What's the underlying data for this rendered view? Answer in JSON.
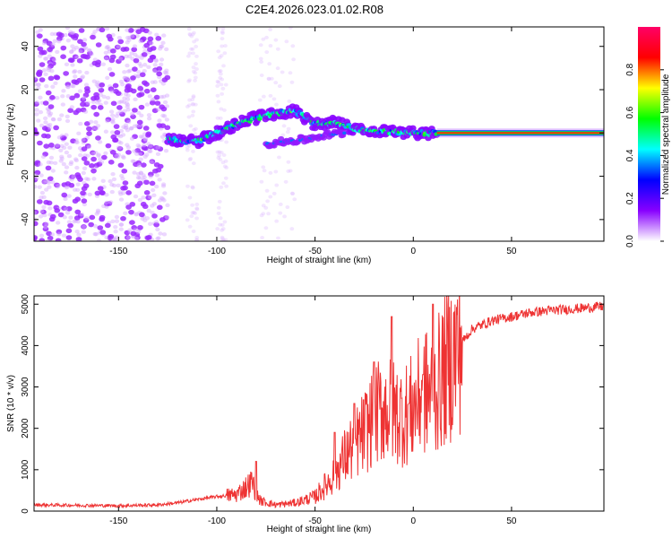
{
  "title": "C2E4.2026.023.01.02.R08",
  "chart_data": [
    {
      "type": "heatmap",
      "name": "spectrogram",
      "xlabel": "Height of straight line (km)",
      "ylabel": "Frequency (Hz)",
      "xlim": [
        -193,
        97
      ],
      "ylim": [
        -50,
        49
      ],
      "xticks": [
        -150,
        -100,
        -50,
        0,
        50
      ],
      "yticks": [
        -40,
        -20,
        0,
        20,
        40
      ],
      "description_points": {
        "dense_noise_region_x": [
          -193,
          -125
        ],
        "sparse_noise_bands_x": [
          [
            -115,
            -110
          ],
          [
            -100,
            -95
          ],
          [
            -78,
            -60
          ]
        ],
        "signal_ridge": [
          {
            "x": -125,
            "f": -3
          },
          {
            "x": -110,
            "f": -4
          },
          {
            "x": -100,
            "f": 0
          },
          {
            "x": -90,
            "f": 4
          },
          {
            "x": -80,
            "f": 7
          },
          {
            "x": -70,
            "f": 9
          },
          {
            "x": -60,
            "f": 10
          },
          {
            "x": -50,
            "f": 4
          },
          {
            "x": -40,
            "f": 5
          },
          {
            "x": -30,
            "f": 2
          },
          {
            "x": -20,
            "f": 1
          },
          {
            "x": -10,
            "f": 0.5
          },
          {
            "x": 0,
            "f": 0
          },
          {
            "x": 12,
            "f": 0
          },
          {
            "x": 97,
            "f": 0
          }
        ],
        "lower_ridge": [
          {
            "x": -75,
            "f": -5
          },
          {
            "x": -65,
            "f": -4
          },
          {
            "x": -55,
            "f": -3
          },
          {
            "x": -45,
            "f": -1
          },
          {
            "x": -35,
            "f": 0
          }
        ],
        "clean_line_x": [
          12,
          97
        ]
      }
    },
    {
      "type": "colorbar",
      "name": "amplitude-colorbar",
      "label": "Normalized spectral amplitude",
      "range": [
        0.0,
        1.0
      ],
      "ticks": [
        0.0,
        0.2,
        0.4,
        0.6,
        0.8
      ],
      "tick_labels": [
        "0.0",
        "0.2",
        "0.4",
        "0.6",
        "0.8"
      ],
      "colors": [
        "#ffffff",
        "#8800ff",
        "#0000ff",
        "#00ffff",
        "#00ff00",
        "#ffff00",
        "#ff0000",
        "#ff0066"
      ]
    },
    {
      "type": "line",
      "name": "snr",
      "xlabel": "Height of straight line (km)",
      "ylabel": "SNR (10 * v/v)",
      "xlim": [
        -193,
        97
      ],
      "ylim": [
        0,
        5200
      ],
      "xticks": [
        -150,
        -100,
        -50,
        0,
        50
      ],
      "yticks": [
        0,
        1000,
        2000,
        3000,
        4000,
        5000
      ],
      "color": "#ee3333",
      "x": [
        -193,
        -170,
        -150,
        -130,
        -120,
        -110,
        -100,
        -90,
        -82,
        -78,
        -70,
        -60,
        -50,
        -45,
        -40,
        -35,
        -30,
        -25,
        -20,
        -15,
        -10,
        -5,
        0,
        5,
        10,
        15,
        20,
        25,
        30,
        40,
        50,
        60,
        70,
        80,
        90,
        97
      ],
      "values": [
        150,
        140,
        130,
        150,
        200,
        280,
        350,
        400,
        700,
        250,
        150,
        200,
        350,
        600,
        900,
        1300,
        1600,
        1900,
        2300,
        2500,
        2400,
        2300,
        2500,
        2900,
        2800,
        3300,
        3700,
        4100,
        4400,
        4600,
        4700,
        4800,
        4850,
        4880,
        4920,
        4950
      ],
      "spikes": [
        {
          "x": -80,
          "value": 1200
        },
        {
          "x": -40,
          "value": 1900
        },
        {
          "x": -30,
          "value": 2600
        },
        {
          "x": -20,
          "value": 3600
        },
        {
          "x": -11,
          "value": 4700
        },
        {
          "x": 5,
          "value": 3300
        },
        {
          "x": 10,
          "value": 5000
        }
      ]
    }
  ]
}
